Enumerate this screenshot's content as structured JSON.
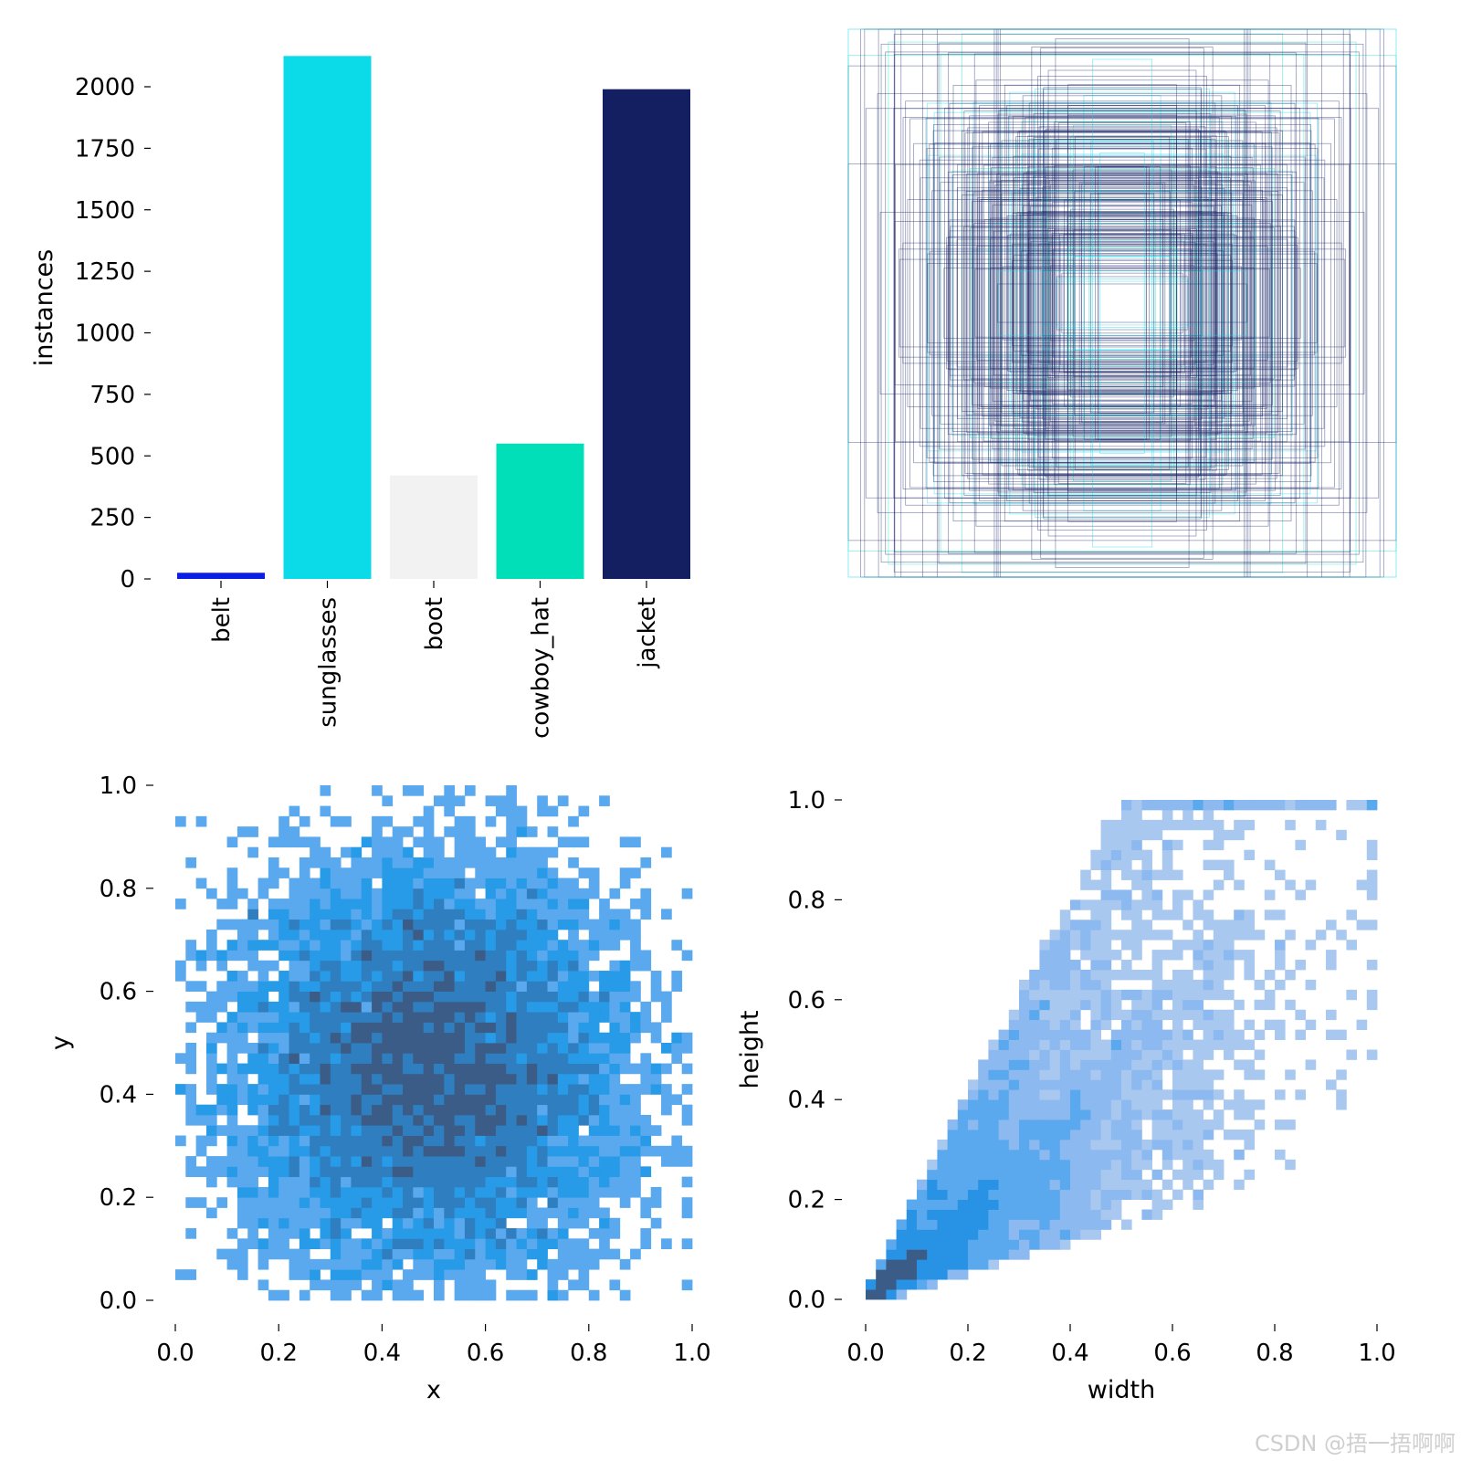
{
  "chart_data": [
    {
      "type": "bar",
      "title": "",
      "xlabel": "",
      "ylabel": "instances",
      "ylim": [
        0,
        2200
      ],
      "yticks": [
        "0",
        "250",
        "500",
        "750",
        "1000",
        "1250",
        "1500",
        "1750",
        "2000"
      ],
      "categories": [
        "belt",
        "sunglasses",
        "boot",
        "cowboy_hat",
        "jacket"
      ],
      "values": [
        25,
        2125,
        420,
        550,
        1990
      ],
      "colors": [
        "#0a1ee6",
        "#0bdae8",
        "#f2f2f2",
        "#00dfb7",
        "#141f62"
      ]
    },
    {
      "type": "rectangles",
      "title": "",
      "description_colors": [
        "#141f62",
        "#0bdae8",
        "#00dfb7"
      ]
    },
    {
      "type": "heatmap",
      "title": "",
      "xlabel": "x",
      "ylabel": "y",
      "xlim": [
        0,
        1
      ],
      "ylim": [
        0,
        1
      ],
      "xticks": [
        "0.0",
        "0.2",
        "0.4",
        "0.6",
        "0.8",
        "1.0"
      ],
      "yticks": [
        "0.0",
        "0.2",
        "0.4",
        "0.6",
        "0.8",
        "1.0"
      ],
      "distribution": {
        "center_x": 0.5,
        "center_y": 0.45,
        "bins": 50
      },
      "colors": [
        "#8fb9ee",
        "#5aa9ee",
        "#279be7",
        "#2f7ec0",
        "#3b5c86"
      ]
    },
    {
      "type": "heatmap",
      "title": "",
      "xlabel": "width",
      "ylabel": "height",
      "xlim": [
        0,
        1
      ],
      "ylim": [
        0,
        1
      ],
      "xticks": [
        "0.0",
        "0.2",
        "0.4",
        "0.6",
        "0.8",
        "1.0"
      ],
      "yticks": [
        "0.0",
        "0.2",
        "0.4",
        "0.6",
        "0.8",
        "1.0"
      ],
      "distribution": {
        "mode_width": 0.05,
        "mode_height": 0.03,
        "correlation": "positive",
        "bins": 50
      },
      "colors": [
        "#a9c8f0",
        "#8cb9ef",
        "#5aa9ee",
        "#2893e4",
        "#3b5c86"
      ]
    }
  ],
  "watermark": "CSDN @捂一捂啊啊"
}
